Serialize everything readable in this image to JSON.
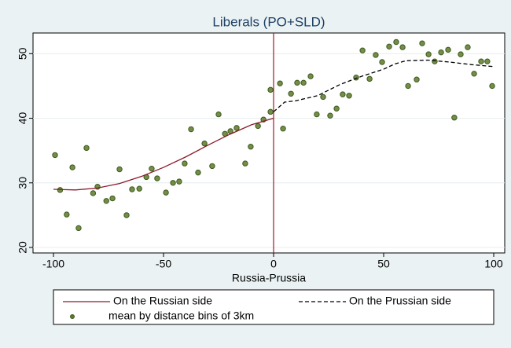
{
  "chart_data": {
    "type": "scatter",
    "title": "Liberals (PO+SLD)",
    "x_label": "Russia-Prussia",
    "xlim": [
      -109.3,
      105
    ],
    "ylim": [
      19.15,
      53.2
    ],
    "xticks": [
      -100,
      -50,
      0,
      50,
      100
    ],
    "yticks": [
      20,
      30,
      40,
      50
    ],
    "grid": true,
    "vline": 0,
    "vline_color": "#a01830",
    "series": [
      {
        "name": "mean by distance bins of 3km",
        "kind": "points",
        "color": "#5c7a2a",
        "x": [
          -99.3,
          -97,
          -94,
          -91.4,
          -88.6,
          -85,
          -82,
          -80,
          -76,
          -73.2,
          -70,
          -66.8,
          -64.3,
          -61,
          -57.8,
          -55.4,
          -52.9,
          -48.9,
          -45.7,
          -42.9,
          -40.4,
          -37.5,
          -34.3,
          -31.4,
          -27.9,
          -25,
          -22.1,
          -19.6,
          -16.8,
          -12.9,
          -10.4,
          -7.1,
          -4.6,
          -1.4,
          -1.4,
          2.9,
          4.3,
          7.9,
          10.7,
          13.6,
          16.8,
          19.6,
          22.5,
          25.7,
          28.6,
          31.4,
          34.3,
          37.5,
          40.4,
          43.6,
          46.4,
          49.3,
          52.5,
          55.7,
          58.6,
          61.1,
          65,
          67.5,
          70.4,
          73.2,
          76.1,
          79.3,
          82.1,
          85,
          88.2,
          91.1,
          94.3,
          97.1,
          99.3
        ],
        "values": [
          34.3,
          28.9,
          25.1,
          32.4,
          23.0,
          35.4,
          28.4,
          29.4,
          27.2,
          27.6,
          32.1,
          25.0,
          29.0,
          29.1,
          30.9,
          32.2,
          30.7,
          28.5,
          30.0,
          30.2,
          33.0,
          38.3,
          31.6,
          36.1,
          32.6,
          40.6,
          37.6,
          38.0,
          38.5,
          33.0,
          35.6,
          38.8,
          39.8,
          41.0,
          44.4,
          45.4,
          38.4,
          43.8,
          45.5,
          45.5,
          46.5,
          40.6,
          43.3,
          40.4,
          41.5,
          43.7,
          43.5,
          46.3,
          50.5,
          46.1,
          49.8,
          48.7,
          51.1,
          51.8,
          51.0,
          45.0,
          46.0,
          51.6,
          49.9,
          48.8,
          50.2,
          50.6,
          40.1,
          49.9,
          51.0,
          46.9,
          48.8,
          48.8,
          45.0
        ]
      },
      {
        "name": "On the Russian side",
        "kind": "line",
        "color": "#8b1a2a",
        "style": "solid",
        "x": [
          -100,
          -90,
          -80,
          -70,
          -60,
          -50,
          -40,
          -30,
          -20,
          -10,
          0
        ],
        "values": [
          29.0,
          28.9,
          29.2,
          29.9,
          31.0,
          32.4,
          34.0,
          35.8,
          37.5,
          39.0,
          40.0
        ]
      },
      {
        "name": "On the Prussian side",
        "kind": "line",
        "color": "#000000",
        "style": "dashed",
        "x": [
          0,
          5,
          10,
          20,
          30,
          40,
          50,
          55,
          60,
          70,
          80,
          90,
          100
        ],
        "values": [
          41.0,
          42.5,
          42.7,
          43.5,
          45.2,
          46.5,
          47.6,
          48.4,
          48.9,
          49.0,
          48.7,
          48.3,
          48.0
        ]
      }
    ]
  }
}
